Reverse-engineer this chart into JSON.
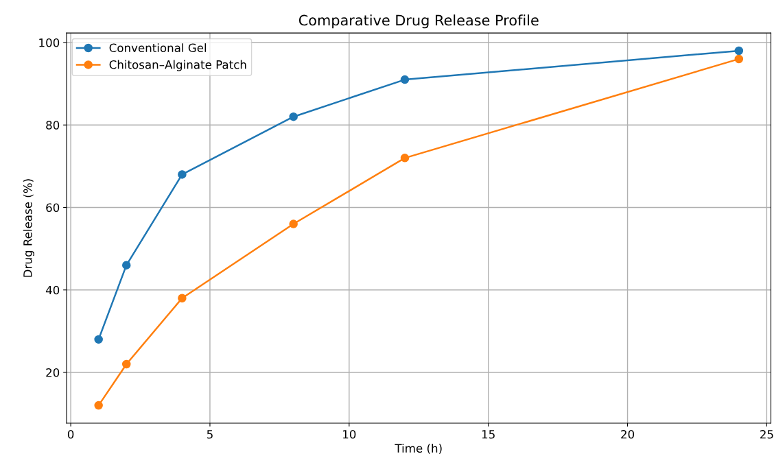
{
  "chart_data": {
    "type": "line",
    "title": "Comparative Drug Release Profile",
    "xlabel": "Time (h)",
    "ylabel": "Drug Release (%)",
    "x": [
      1,
      2,
      4,
      8,
      12,
      24
    ],
    "series": [
      {
        "name": "Conventional Gel",
        "color": "#1f77b4",
        "values": [
          28,
          46,
          68,
          82,
          91,
          98
        ]
      },
      {
        "name": "Chitosan–Alginate Patch",
        "color": "#ff7f0e",
        "values": [
          12,
          22,
          38,
          56,
          72,
          96
        ]
      }
    ],
    "xlim": [
      -0.15,
      25.15
    ],
    "ylim": [
      7.7,
      102.3
    ],
    "xticks": [
      0,
      5,
      10,
      15,
      20,
      25
    ],
    "yticks": [
      20,
      40,
      60,
      80,
      100
    ],
    "grid": true,
    "legend": "top left",
    "marker": "circle",
    "line_style": "solid"
  }
}
